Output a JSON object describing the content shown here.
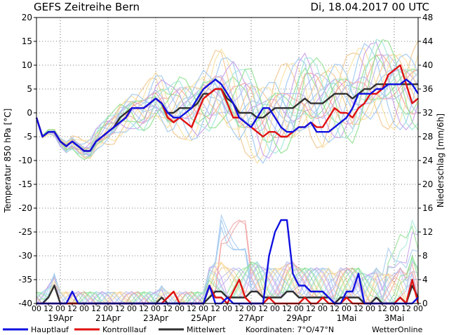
{
  "header": {
    "title": "GEFS  Zeitreihe  Bern",
    "date": "Di, 18.04.2017  00  UTC"
  },
  "footer": {
    "legend": [
      {
        "label": "Hauptlauf",
        "color": "#1010e0"
      },
      {
        "label": "Kontrolllauf",
        "color": "#e01010"
      },
      {
        "label": "Mittelwert",
        "color": "#303030"
      }
    ],
    "coordinates": "Koordinaten:  7°O/47°N",
    "brand": "WetterOnline"
  },
  "chart_data": {
    "type": "line",
    "y_left": {
      "label": "Temperatur  850  hPa  [°C]",
      "min": -40,
      "max": 20,
      "ticks": [
        20,
        15,
        10,
        5,
        0,
        -5,
        -10,
        -15,
        -20,
        -25,
        -30,
        -35,
        -40
      ]
    },
    "y_right": {
      "label": "Niederschlag  [mm/6h]",
      "min": 0,
      "max": 48,
      "ticks": [
        48,
        44,
        40,
        36,
        32,
        28,
        24,
        20,
        16,
        12,
        8,
        4,
        0
      ]
    },
    "x": {
      "hour_labels": [
        "00",
        "12",
        "00",
        "12",
        "00",
        "12",
        "00",
        "12",
        "00",
        "12",
        "00",
        "12",
        "00",
        "12",
        "00",
        "12",
        "00",
        "12",
        "00",
        "12",
        "00",
        "12",
        "00",
        "12",
        "00",
        "12",
        "00",
        "12",
        "00",
        "12",
        "00",
        "12",
        "00"
      ],
      "date_labels": [
        "19Apr",
        "21Apr",
        "23Apr",
        "25Apr",
        "27Apr",
        "29Apr",
        "1Mai",
        "3Mai"
      ],
      "steps": 65
    },
    "series": [
      {
        "name": "Hauptlauf",
        "color": "#1010e0",
        "kind": "temperature",
        "values": [
          -1,
          -5,
          -4,
          -4,
          -6,
          -7,
          -6,
          -7,
          -8,
          -8,
          -6,
          -5,
          -4,
          -3,
          -2,
          -1,
          1,
          1,
          1,
          2,
          3,
          2,
          0,
          -1,
          -1,
          0,
          1,
          3,
          5,
          6,
          7,
          6,
          4,
          2,
          -1,
          -2,
          -3,
          -1,
          1,
          1,
          -1,
          -3,
          -4,
          -4,
          -3,
          -3,
          -2,
          -4,
          -4,
          -4,
          -3,
          -2,
          -1,
          1,
          4,
          4,
          4,
          5,
          5,
          6,
          6,
          6,
          7,
          6,
          4
        ]
      },
      {
        "name": "Kontrolllauf",
        "color": "#e01010",
        "kind": "temperature",
        "values": [
          -1,
          -5,
          -4,
          -4,
          -6,
          -7,
          -6,
          -7,
          -8,
          -8,
          -6,
          -5,
          -4,
          -3,
          -2,
          -1,
          1,
          1,
          1,
          2,
          3,
          2,
          -1,
          -2,
          -1,
          -2,
          -3,
          0,
          3,
          4,
          5,
          5,
          2,
          -1,
          -1,
          -2,
          -3,
          -4,
          -5,
          -4,
          -4,
          -5,
          -5,
          -4,
          -3,
          -3,
          -2,
          -3,
          -3,
          -1,
          1,
          0,
          0,
          -1,
          1,
          2,
          4,
          4,
          5,
          8,
          9,
          10,
          6,
          2,
          3
        ]
      },
      {
        "name": "Mittelwert",
        "color": "#303030",
        "kind": "temperature",
        "values": [
          -1,
          -5,
          -4,
          -4,
          -6,
          -7,
          -6,
          -7,
          -8,
          -8,
          -6,
          -5,
          -4,
          -3,
          -1,
          0,
          1,
          1,
          1,
          2,
          3,
          2,
          0,
          0,
          1,
          1,
          1,
          2,
          4,
          4,
          5,
          5,
          3,
          2,
          0,
          0,
          0,
          -1,
          -1,
          0,
          1,
          1,
          1,
          1,
          2,
          3,
          2,
          2,
          2,
          3,
          4,
          4,
          4,
          3,
          4,
          5,
          5,
          6,
          6,
          6,
          6,
          6,
          6,
          6,
          6
        ]
      },
      {
        "name": "Hauptlauf-Niederschlag",
        "color": "#1010e0",
        "kind": "precip",
        "values": [
          0,
          0,
          0,
          0,
          0,
          0,
          2,
          0,
          0,
          0,
          0,
          0,
          0,
          0,
          0,
          0,
          0,
          0,
          0,
          0,
          0,
          0,
          0,
          0,
          0,
          0,
          0,
          0,
          0,
          3,
          0,
          0,
          1,
          0,
          0,
          0,
          0,
          0,
          0,
          8,
          12,
          14,
          14,
          5,
          3,
          3,
          2,
          2,
          2,
          1,
          0,
          0,
          2,
          2,
          5,
          0,
          0,
          0,
          0,
          0,
          0,
          0,
          0,
          0,
          1
        ]
      },
      {
        "name": "Kontrolllauf-Niederschlag",
        "color": "#e01010",
        "kind": "precip",
        "values": [
          0,
          0,
          0,
          0,
          0,
          0,
          0,
          0,
          0,
          0,
          0,
          0,
          0,
          0,
          0,
          0,
          0,
          0,
          0,
          0,
          0,
          0,
          1,
          2,
          0,
          0,
          0,
          0,
          0,
          3,
          1,
          1,
          0,
          2,
          4,
          1,
          0,
          0,
          0,
          1,
          0,
          0,
          0,
          0,
          0,
          1,
          0,
          0,
          1,
          0,
          0,
          0,
          1,
          0,
          0,
          0,
          0,
          0,
          0,
          0,
          0,
          1,
          0,
          4,
          0
        ]
      },
      {
        "name": "Mittelwert-Niederschlag",
        "color": "#303030",
        "kind": "precip",
        "values": [
          0,
          0,
          1,
          3,
          0,
          0,
          0,
          0,
          0,
          0,
          0,
          0,
          0,
          0,
          0,
          0,
          0,
          0,
          0,
          0,
          0,
          1,
          0,
          0,
          0,
          0,
          0,
          0,
          0,
          1,
          2,
          2,
          1,
          1,
          1,
          1,
          2,
          2,
          1,
          1,
          1,
          1,
          2,
          2,
          1,
          1,
          1,
          1,
          1,
          1,
          0,
          1,
          1,
          1,
          1,
          0,
          0,
          1,
          0,
          0,
          0,
          1,
          0,
          3,
          1
        ]
      }
    ],
    "ensemble": {
      "colors": [
        "#a0c8f0",
        "#90e090",
        "#f0c890",
        "#c8a0e8",
        "#f0a0a0",
        "#f8e0a0",
        "#a0e8d8",
        "#b8b8f0"
      ],
      "count": 18
    }
  }
}
